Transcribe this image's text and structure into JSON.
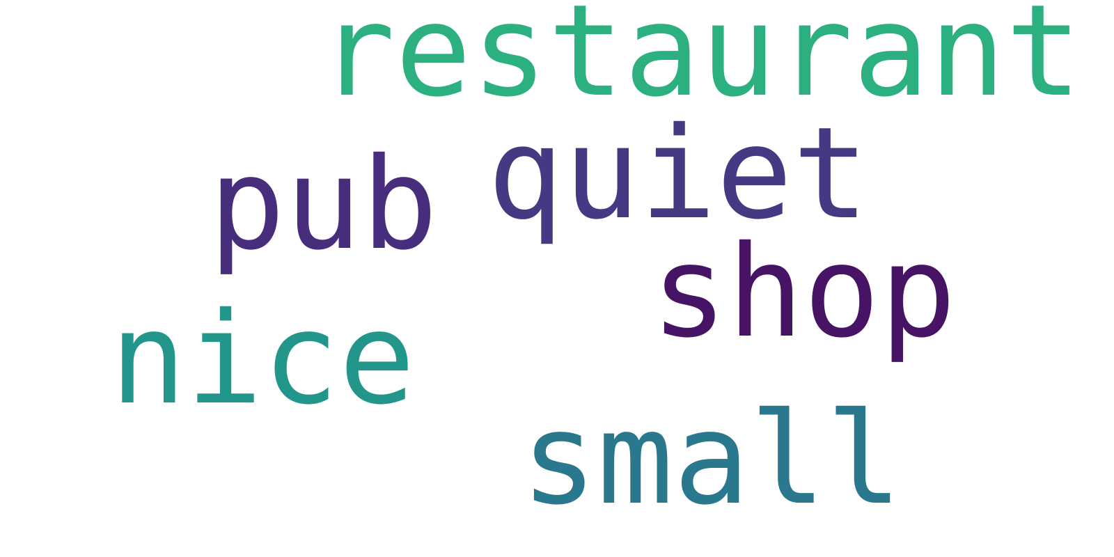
{
  "word_cloud": {
    "background": "#ffffff",
    "words": {
      "restaurant": {
        "text": "restaurant",
        "color": "#2db07f"
      },
      "quiet": {
        "text": "quiet",
        "color": "#443983"
      },
      "pub": {
        "text": "pub",
        "color": "#472d7b"
      },
      "shop": {
        "text": "shop",
        "color": "#471365"
      },
      "nice": {
        "text": "nice",
        "color": "#23968b"
      },
      "small": {
        "text": "small",
        "color": "#2a788e"
      }
    }
  }
}
